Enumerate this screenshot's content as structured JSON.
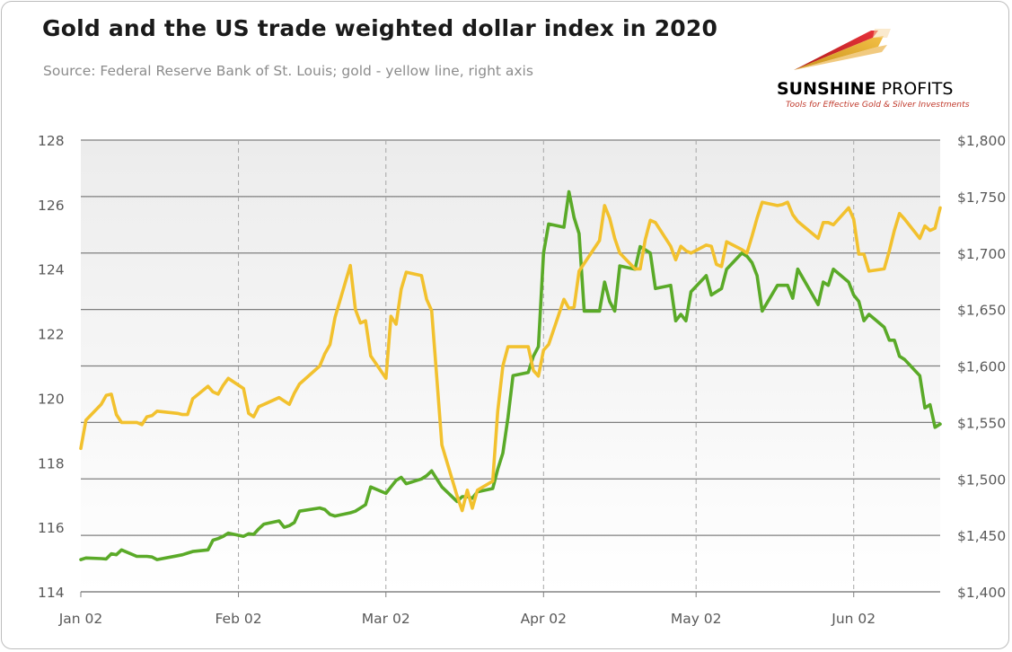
{
  "header": {
    "title": "Gold and the US trade weighted dollar index in 2020",
    "subtitle": "Source: Federal Reserve Bank of St. Louis; gold - yellow line, right axis"
  },
  "logo": {
    "name_bold": "SUNSHINE",
    "name_rest": " PROFITS",
    "tagline": "Tools for Effective Gold & Silver Investments"
  },
  "colors": {
    "dollar": "#5aaa28",
    "gold": "#f2c12e",
    "grid": "#7f7f7f",
    "plot_bg_top": "#ececec",
    "plot_bg_bottom": "#ffffff"
  },
  "chart_data": {
    "type": "line",
    "title": "Gold and the US trade weighted dollar index in 2020",
    "x_ticks": [
      "Jan 02",
      "Feb 02",
      "Mar 02",
      "Apr 02",
      "May 02",
      "Jun 02"
    ],
    "x_range": [
      "2020-01-02",
      "2020-06-19"
    ],
    "ylim_left": [
      114,
      128
    ],
    "yticks_left": [
      "114",
      "116",
      "118",
      "120",
      "122",
      "124",
      "126",
      "128"
    ],
    "ylim_right": [
      1400,
      1800
    ],
    "yticks_right": [
      "$1,400",
      "$1,450",
      "$1,500",
      "$1,550",
      "$1,600",
      "$1,650",
      "$1,700",
      "$1,750",
      "$1,800"
    ],
    "grid": {
      "horizontal": true,
      "vertical_dashed": true
    },
    "series": [
      {
        "name": "Trade weighted U.S. dollar index",
        "axis": "left",
        "color": "#5aaa28",
        "points": [
          [
            "2020-01-02",
            115.0
          ],
          [
            "2020-01-03",
            115.05
          ],
          [
            "2020-01-06",
            115.03
          ],
          [
            "2020-01-07",
            115.02
          ],
          [
            "2020-01-08",
            115.18
          ],
          [
            "2020-01-09",
            115.15
          ],
          [
            "2020-01-10",
            115.3
          ],
          [
            "2020-01-13",
            115.1
          ],
          [
            "2020-01-14",
            115.1
          ],
          [
            "2020-01-15",
            115.1
          ],
          [
            "2020-01-16",
            115.08
          ],
          [
            "2020-01-17",
            115.0
          ],
          [
            "2020-01-21",
            115.12
          ],
          [
            "2020-01-22",
            115.15
          ],
          [
            "2020-01-23",
            115.2
          ],
          [
            "2020-01-24",
            115.25
          ],
          [
            "2020-01-27",
            115.3
          ],
          [
            "2020-01-28",
            115.6
          ],
          [
            "2020-01-29",
            115.65
          ],
          [
            "2020-01-30",
            115.72
          ],
          [
            "2020-01-31",
            115.82
          ],
          [
            "2020-02-03",
            115.72
          ],
          [
            "2020-02-04",
            115.8
          ],
          [
            "2020-02-05",
            115.78
          ],
          [
            "2020-02-06",
            115.95
          ],
          [
            "2020-02-07",
            116.1
          ],
          [
            "2020-02-10",
            116.2
          ],
          [
            "2020-02-11",
            116.0
          ],
          [
            "2020-02-12",
            116.05
          ],
          [
            "2020-02-13",
            116.15
          ],
          [
            "2020-02-14",
            116.5
          ],
          [
            "2020-02-18",
            116.6
          ],
          [
            "2020-02-19",
            116.55
          ],
          [
            "2020-02-20",
            116.4
          ],
          [
            "2020-02-21",
            116.35
          ],
          [
            "2020-02-24",
            116.45
          ],
          [
            "2020-02-25",
            116.5
          ],
          [
            "2020-02-26",
            116.6
          ],
          [
            "2020-02-27",
            116.7
          ],
          [
            "2020-02-28",
            117.25
          ],
          [
            "2020-03-02",
            117.05
          ],
          [
            "2020-03-03",
            117.25
          ],
          [
            "2020-03-04",
            117.45
          ],
          [
            "2020-03-05",
            117.55
          ],
          [
            "2020-03-06",
            117.35
          ],
          [
            "2020-03-09",
            117.5
          ],
          [
            "2020-03-10",
            117.6
          ],
          [
            "2020-03-11",
            117.75
          ],
          [
            "2020-03-12",
            117.5
          ],
          [
            "2020-03-13",
            117.25
          ],
          [
            "2020-03-16",
            116.8
          ],
          [
            "2020-03-17",
            116.95
          ],
          [
            "2020-03-18",
            116.95
          ],
          [
            "2020-03-19",
            116.9
          ],
          [
            "2020-03-20",
            117.1
          ],
          [
            "2020-03-23",
            117.2
          ],
          [
            "2020-03-24",
            117.8
          ],
          [
            "2020-03-25",
            118.3
          ],
          [
            "2020-03-26",
            119.4
          ],
          [
            "2020-03-27",
            120.7
          ],
          [
            "2020-03-30",
            120.8
          ],
          [
            "2020-03-31",
            121.3
          ],
          [
            "2020-04-01",
            121.6
          ],
          [
            "2020-04-02",
            124.5
          ],
          [
            "2020-04-03",
            125.4
          ],
          [
            "2020-04-06",
            125.3
          ],
          [
            "2020-04-07",
            126.4
          ],
          [
            "2020-04-08",
            125.6
          ],
          [
            "2020-04-09",
            125.1
          ],
          [
            "2020-04-10",
            122.7
          ],
          [
            "2020-04-13",
            122.7
          ],
          [
            "2020-04-14",
            123.6
          ],
          [
            "2020-04-15",
            123.0
          ],
          [
            "2020-04-16",
            122.7
          ],
          [
            "2020-04-17",
            124.1
          ],
          [
            "2020-04-20",
            124.0
          ],
          [
            "2020-04-21",
            124.7
          ],
          [
            "2020-04-22",
            124.6
          ],
          [
            "2020-04-23",
            124.5
          ],
          [
            "2020-04-24",
            123.4
          ],
          [
            "2020-04-27",
            123.5
          ],
          [
            "2020-04-28",
            122.4
          ],
          [
            "2020-04-29",
            122.6
          ],
          [
            "2020-04-30",
            122.4
          ],
          [
            "2020-05-01",
            123.3
          ],
          [
            "2020-05-04",
            123.8
          ],
          [
            "2020-05-05",
            123.2
          ],
          [
            "2020-05-06",
            123.3
          ],
          [
            "2020-05-07",
            123.4
          ],
          [
            "2020-05-08",
            124.0
          ],
          [
            "2020-05-11",
            124.5
          ],
          [
            "2020-05-12",
            124.4
          ],
          [
            "2020-05-13",
            124.2
          ],
          [
            "2020-05-14",
            123.8
          ],
          [
            "2020-05-15",
            122.7
          ],
          [
            "2020-05-18",
            123.5
          ],
          [
            "2020-05-19",
            123.5
          ],
          [
            "2020-05-20",
            123.5
          ],
          [
            "2020-05-21",
            123.1
          ],
          [
            "2020-05-22",
            124.0
          ],
          [
            "2020-05-26",
            122.9
          ],
          [
            "2020-05-27",
            123.6
          ],
          [
            "2020-05-28",
            123.5
          ],
          [
            "2020-05-29",
            124.0
          ],
          [
            "2020-06-01",
            123.6
          ],
          [
            "2020-06-02",
            123.2
          ],
          [
            "2020-06-03",
            123.0
          ],
          [
            "2020-06-04",
            122.4
          ],
          [
            "2020-06-05",
            122.6
          ],
          [
            "2020-06-08",
            122.2
          ],
          [
            "2020-06-09",
            121.8
          ],
          [
            "2020-06-10",
            121.8
          ],
          [
            "2020-06-11",
            121.3
          ],
          [
            "2020-06-12",
            121.2
          ],
          [
            "2020-06-15",
            120.7
          ],
          [
            "2020-06-16",
            119.7
          ],
          [
            "2020-06-17",
            119.8
          ],
          [
            "2020-06-18",
            119.1
          ],
          [
            "2020-06-19",
            119.2
          ]
        ]
      },
      {
        "name": "Gold price",
        "axis": "right",
        "color": "#f2c12e",
        "points": [
          [
            "2020-01-02",
            1527
          ],
          [
            "2020-01-03",
            1552
          ],
          [
            "2020-01-06",
            1566
          ],
          [
            "2020-01-07",
            1574
          ],
          [
            "2020-01-08",
            1575
          ],
          [
            "2020-01-09",
            1557
          ],
          [
            "2020-01-10",
            1550
          ],
          [
            "2020-01-13",
            1550
          ],
          [
            "2020-01-14",
            1548
          ],
          [
            "2020-01-15",
            1555
          ],
          [
            "2020-01-16",
            1556
          ],
          [
            "2020-01-17",
            1560
          ],
          [
            "2020-01-21",
            1558
          ],
          [
            "2020-01-22",
            1557
          ],
          [
            "2020-01-23",
            1557
          ],
          [
            "2020-01-24",
            1571
          ],
          [
            "2020-01-27",
            1582
          ],
          [
            "2020-01-28",
            1577
          ],
          [
            "2020-01-29",
            1575
          ],
          [
            "2020-01-30",
            1583
          ],
          [
            "2020-01-31",
            1589
          ],
          [
            "2020-02-03",
            1580
          ],
          [
            "2020-02-04",
            1558
          ],
          [
            "2020-02-05",
            1555
          ],
          [
            "2020-02-06",
            1564
          ],
          [
            "2020-02-07",
            1566
          ],
          [
            "2020-02-10",
            1572
          ],
          [
            "2020-02-11",
            1569
          ],
          [
            "2020-02-12",
            1566
          ],
          [
            "2020-02-13",
            1576
          ],
          [
            "2020-02-14",
            1584
          ],
          [
            "2020-02-18",
            1600
          ],
          [
            "2020-02-19",
            1611
          ],
          [
            "2020-02-20",
            1619
          ],
          [
            "2020-02-21",
            1643
          ],
          [
            "2020-02-24",
            1689
          ],
          [
            "2020-02-25",
            1650
          ],
          [
            "2020-02-26",
            1638
          ],
          [
            "2020-02-27",
            1640
          ],
          [
            "2020-02-28",
            1609
          ],
          [
            "2020-03-02",
            1589
          ],
          [
            "2020-03-03",
            1644
          ],
          [
            "2020-03-04",
            1637
          ],
          [
            "2020-03-05",
            1668
          ],
          [
            "2020-03-06",
            1683
          ],
          [
            "2020-03-09",
            1680
          ],
          [
            "2020-03-10",
            1659
          ],
          [
            "2020-03-11",
            1649
          ],
          [
            "2020-03-12",
            1590
          ],
          [
            "2020-03-13",
            1530
          ],
          [
            "2020-03-16",
            1485
          ],
          [
            "2020-03-17",
            1472
          ],
          [
            "2020-03-18",
            1490
          ],
          [
            "2020-03-19",
            1474
          ],
          [
            "2020-03-20",
            1490
          ],
          [
            "2020-03-23",
            1498
          ],
          [
            "2020-03-24",
            1560
          ],
          [
            "2020-03-25",
            1600
          ],
          [
            "2020-03-26",
            1617
          ],
          [
            "2020-03-27",
            1617
          ],
          [
            "2020-03-30",
            1617
          ],
          [
            "2020-03-31",
            1596
          ],
          [
            "2020-04-01",
            1591
          ],
          [
            "2020-04-02",
            1614
          ],
          [
            "2020-04-03",
            1619
          ],
          [
            "2020-04-06",
            1659
          ],
          [
            "2020-04-07",
            1651
          ],
          [
            "2020-04-08",
            1652
          ],
          [
            "2020-04-09",
            1684
          ],
          [
            "2020-04-13",
            1711
          ],
          [
            "2020-04-14",
            1742
          ],
          [
            "2020-04-15",
            1731
          ],
          [
            "2020-04-16",
            1713
          ],
          [
            "2020-04-17",
            1700
          ],
          [
            "2020-04-20",
            1686
          ],
          [
            "2020-04-21",
            1686
          ],
          [
            "2020-04-22",
            1712
          ],
          [
            "2020-04-23",
            1729
          ],
          [
            "2020-04-24",
            1727
          ],
          [
            "2020-04-27",
            1706
          ],
          [
            "2020-04-28",
            1694
          ],
          [
            "2020-04-29",
            1706
          ],
          [
            "2020-04-30",
            1702
          ],
          [
            "2020-05-01",
            1700
          ],
          [
            "2020-05-04",
            1707
          ],
          [
            "2020-05-05",
            1706
          ],
          [
            "2020-05-06",
            1690
          ],
          [
            "2020-05-07",
            1688
          ],
          [
            "2020-05-08",
            1710
          ],
          [
            "2020-05-11",
            1703
          ],
          [
            "2020-05-12",
            1700
          ],
          [
            "2020-05-13",
            1715
          ],
          [
            "2020-05-14",
            1731
          ],
          [
            "2020-05-15",
            1745
          ],
          [
            "2020-05-18",
            1742
          ],
          [
            "2020-05-19",
            1743
          ],
          [
            "2020-05-20",
            1745
          ],
          [
            "2020-05-21",
            1734
          ],
          [
            "2020-05-22",
            1728
          ],
          [
            "2020-05-26",
            1713
          ],
          [
            "2020-05-27",
            1727
          ],
          [
            "2020-05-28",
            1727
          ],
          [
            "2020-05-29",
            1725
          ],
          [
            "2020-06-01",
            1740
          ],
          [
            "2020-06-02",
            1730
          ],
          [
            "2020-06-03",
            1699
          ],
          [
            "2020-06-04",
            1699
          ],
          [
            "2020-06-05",
            1684
          ],
          [
            "2020-06-08",
            1686
          ],
          [
            "2020-06-09",
            1702
          ],
          [
            "2020-06-10",
            1720
          ],
          [
            "2020-06-11",
            1735
          ],
          [
            "2020-06-12",
            1730
          ],
          [
            "2020-06-15",
            1713
          ],
          [
            "2020-06-16",
            1724
          ],
          [
            "2020-06-17",
            1720
          ],
          [
            "2020-06-18",
            1722
          ],
          [
            "2020-06-19",
            1740
          ]
        ]
      }
    ]
  }
}
